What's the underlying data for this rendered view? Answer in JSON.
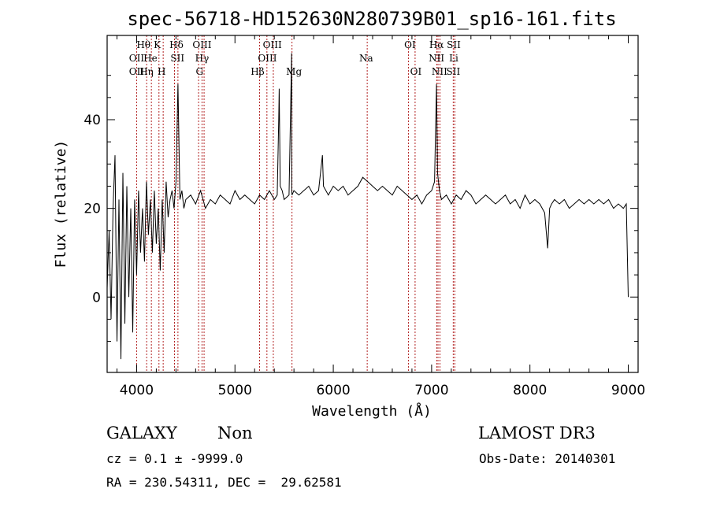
{
  "chart_data": {
    "type": "line",
    "title": "spec-56718-HD152630N280739B01_sp16-161.fits",
    "xlabel": "Wavelength (Å)",
    "ylabel": "Flux (relative)",
    "xlim": [
      3700,
      9100
    ],
    "ylim": [
      -17,
      59
    ],
    "xticks": [
      4000,
      5000,
      6000,
      7000,
      8000,
      9000
    ],
    "xtick_labels": [
      "4000",
      "5000",
      "6000",
      "7000",
      "8000",
      "9000"
    ],
    "yticks": [
      0,
      20,
      40
    ],
    "ytick_labels": [
      "0",
      "20",
      "40"
    ],
    "series": [
      {
        "name": "spectrum",
        "x": [
          3700,
          3720,
          3740,
          3760,
          3780,
          3800,
          3820,
          3840,
          3860,
          3880,
          3900,
          3920,
          3940,
          3960,
          3980,
          4000,
          4020,
          4040,
          4060,
          4080,
          4100,
          4120,
          4140,
          4160,
          4180,
          4200,
          4220,
          4240,
          4260,
          4280,
          4300,
          4320,
          4340,
          4360,
          4380,
          4400,
          4420,
          4440,
          4460,
          4480,
          4500,
          4550,
          4600,
          4650,
          4700,
          4750,
          4800,
          4850,
          4900,
          4950,
          5000,
          5050,
          5100,
          5150,
          5200,
          5250,
          5300,
          5350,
          5400,
          5430,
          5445,
          5450,
          5460,
          5480,
          5500,
          5550,
          5576,
          5577,
          5580,
          5600,
          5650,
          5700,
          5750,
          5800,
          5850,
          5890,
          5900,
          5950,
          6000,
          6050,
          6100,
          6150,
          6200,
          6250,
          6300,
          6350,
          6400,
          6450,
          6500,
          6550,
          6600,
          6650,
          6700,
          6750,
          6800,
          6850,
          6900,
          6950,
          7000,
          7030,
          7050,
          7060,
          7080,
          7100,
          7150,
          7200,
          7250,
          7300,
          7350,
          7400,
          7450,
          7500,
          7550,
          7600,
          7650,
          7700,
          7750,
          7800,
          7850,
          7900,
          7950,
          8000,
          8050,
          8100,
          8150,
          8180,
          8200,
          8220,
          8250,
          8300,
          8350,
          8400,
          8450,
          8500,
          8550,
          8600,
          8650,
          8700,
          8750,
          8800,
          8850,
          8900,
          8950,
          8980,
          9000
        ],
        "y": [
          2,
          15,
          -5,
          20,
          32,
          -10,
          22,
          -14,
          28,
          -6,
          25,
          0,
          20,
          -8,
          22,
          5,
          24,
          10,
          20,
          8,
          26,
          14,
          22,
          10,
          24,
          12,
          20,
          6,
          22,
          10,
          26,
          18,
          22,
          24,
          20,
          26,
          48,
          22,
          24,
          20,
          22,
          23,
          21,
          24,
          20,
          22,
          21,
          23,
          22,
          21,
          24,
          22,
          23,
          22,
          21,
          23,
          22,
          24,
          22,
          23,
          40,
          47,
          25,
          24,
          22,
          23,
          55,
          24,
          23,
          24,
          23,
          24,
          25,
          23,
          24,
          32,
          25,
          23,
          25,
          24,
          25,
          23,
          24,
          25,
          27,
          26,
          25,
          24,
          25,
          24,
          23,
          25,
          24,
          23,
          22,
          23,
          21,
          23,
          24,
          26,
          48,
          28,
          24,
          22,
          23,
          21,
          23,
          22,
          24,
          23,
          21,
          22,
          23,
          22,
          21,
          22,
          23,
          21,
          22,
          20,
          23,
          21,
          22,
          21,
          19,
          11,
          20,
          21,
          22,
          21,
          22,
          20,
          21,
          22,
          21,
          22,
          21,
          22,
          21,
          22,
          20,
          21,
          20,
          21,
          0
        ]
      }
    ],
    "line_markers": [
      {
        "wavelength": 4000
      },
      {
        "wavelength": 4102
      },
      {
        "wavelength": 4150
      },
      {
        "wavelength": 4227
      },
      {
        "wavelength": 4270
      },
      {
        "wavelength": 4385
      },
      {
        "wavelength": 4420
      },
      {
        "wavelength": 4630
      },
      {
        "wavelength": 4665
      },
      {
        "wavelength": 4686
      },
      {
        "wavelength": 5250
      },
      {
        "wavelength": 5325
      },
      {
        "wavelength": 5390
      },
      {
        "wavelength": 5580
      },
      {
        "wavelength": 6345
      },
      {
        "wavelength": 6765
      },
      {
        "wavelength": 6832
      },
      {
        "wavelength": 7052
      },
      {
        "wavelength": 7065
      },
      {
        "wavelength": 7085
      },
      {
        "wavelength": 7220
      },
      {
        "wavelength": 7236
      }
    ],
    "line_labels": [
      {
        "text": "Hθ",
        "wavelength": 4070,
        "row": 1
      },
      {
        "text": "K",
        "wavelength": 4210,
        "row": 1
      },
      {
        "text": "Hδ",
        "wavelength": 4405,
        "row": 1
      },
      {
        "text": "OIII",
        "wavelength": 4665,
        "row": 1
      },
      {
        "text": "OIII",
        "wavelength": 5380,
        "row": 1
      },
      {
        "text": "OI",
        "wavelength": 6780,
        "row": 1
      },
      {
        "text": "Hα",
        "wavelength": 7050,
        "row": 1
      },
      {
        "text": "SII",
        "wavelength": 7225,
        "row": 1
      },
      {
        "text": "OII",
        "wavelength": 4000,
        "row": 2
      },
      {
        "text": "He",
        "wavelength": 4140,
        "row": 2
      },
      {
        "text": "SII",
        "wavelength": 4415,
        "row": 2
      },
      {
        "text": "Hγ",
        "wavelength": 4665,
        "row": 2
      },
      {
        "text": "OIII",
        "wavelength": 5330,
        "row": 2
      },
      {
        "text": "Na",
        "wavelength": 6335,
        "row": 2
      },
      {
        "text": "NII",
        "wavelength": 7050,
        "row": 2
      },
      {
        "text": "Li",
        "wavelength": 7225,
        "row": 2
      },
      {
        "text": "OII",
        "wavelength": 4000,
        "row": 3
      },
      {
        "text": "Hη",
        "wavelength": 4100,
        "row": 3
      },
      {
        "text": "H",
        "wavelength": 4255,
        "row": 3
      },
      {
        "text": "G",
        "wavelength": 4640,
        "row": 3
      },
      {
        "text": "Hβ",
        "wavelength": 5230,
        "row": 3
      },
      {
        "text": "Mg",
        "wavelength": 5600,
        "row": 3
      },
      {
        "text": "OI",
        "wavelength": 6840,
        "row": 3
      },
      {
        "text": "NII",
        "wavelength": 7080,
        "row": 3
      },
      {
        "text": "SII",
        "wavelength": 7220,
        "row": 3
      }
    ]
  },
  "footer": {
    "object_class": "GALAXY",
    "subclass": "Non",
    "survey": "LAMOST DR3",
    "cz": "cz = 0.1 ± -9999.0",
    "obs_date": "Obs-Date: 20140301",
    "coords": "RA = 230.54311, DEC =  29.62581"
  },
  "colors": {
    "marker": "#b22222",
    "spectrum": "#000000"
  }
}
